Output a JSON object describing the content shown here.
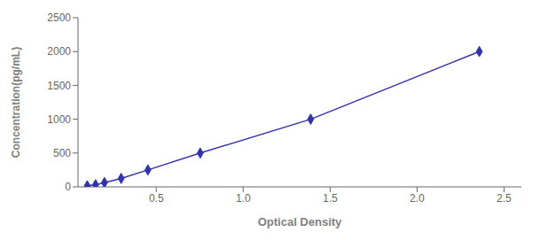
{
  "chart_data": {
    "type": "line",
    "x": [
      0.103,
      0.151,
      0.202,
      0.298,
      0.452,
      0.753,
      1.388,
      2.358
    ],
    "values": [
      15.6,
      31.25,
      62.5,
      125,
      250,
      500,
      1000,
      2000
    ],
    "color": "#3333AA",
    "marker": "diamond",
    "xlabel": "Optical Density",
    "ylabel": "Concentration(pg/mL)",
    "xlim": [
      0.05,
      2.6
    ],
    "ylim": [
      0,
      2500
    ],
    "xticks": [
      0.5,
      {
        "value": 1,
        "label": "1.0"
      },
      1.5,
      {
        "value": 2,
        "label": "2.0"
      },
      2.5
    ],
    "yticks": [
      0,
      500,
      1000,
      1500,
      2000,
      2500
    ],
    "grid": false
  }
}
